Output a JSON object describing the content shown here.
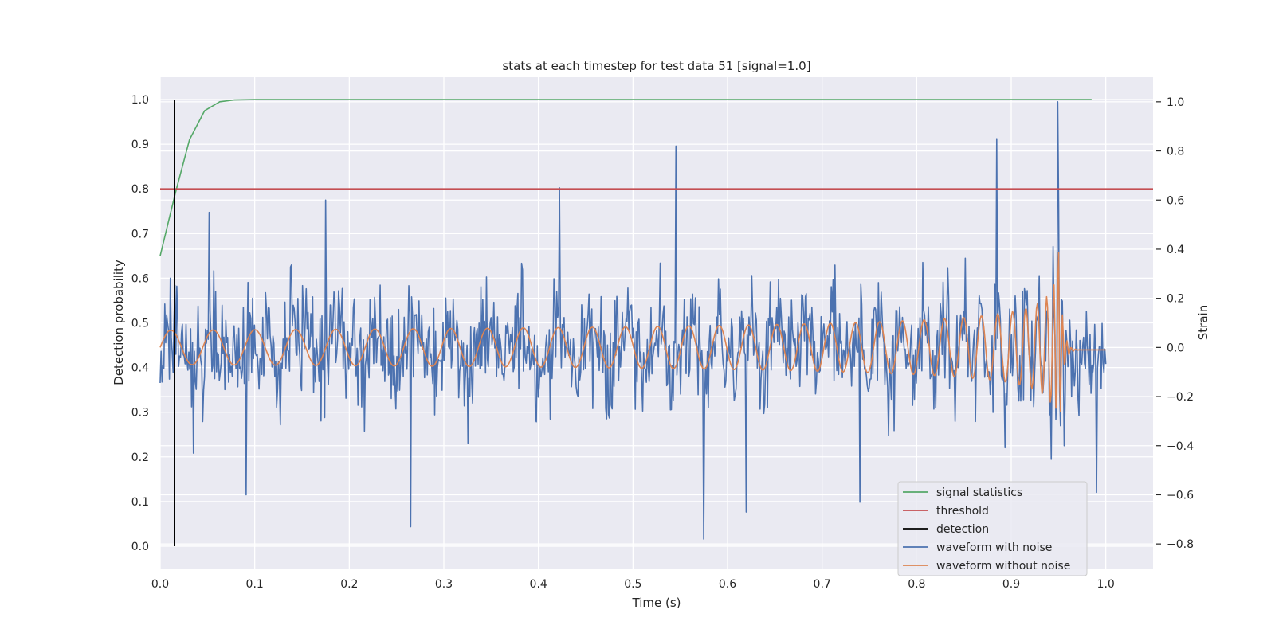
{
  "chart_data": {
    "type": "line",
    "title": "stats at each timestep for test data 51 [signal=1.0]",
    "xlabel": "Time (s)",
    "ylabel": "Detection probability",
    "y2label": "Strain",
    "xlim": [
      0.0,
      1.05
    ],
    "ylim": [
      -0.05,
      1.05
    ],
    "y2lim": [
      -0.9,
      1.1
    ],
    "xticks": [
      "0.0",
      "0.1",
      "0.2",
      "0.3",
      "0.4",
      "0.5",
      "0.6",
      "0.7",
      "0.8",
      "0.9",
      "1.0"
    ],
    "yticks": [
      "0.0",
      "0.1",
      "0.2",
      "0.3",
      "0.4",
      "0.5",
      "0.6",
      "0.7",
      "0.8",
      "0.9",
      "1.0"
    ],
    "y2ticks": [
      "−0.8",
      "−0.6",
      "−0.4",
      "−0.2",
      "0.0",
      "0.2",
      "0.4",
      "0.6",
      "0.8",
      "1.0"
    ],
    "grid": true,
    "legend_position": "lower-right",
    "series": [
      {
        "name": "signal statistics",
        "axis": "left",
        "color": "#55a868",
        "x": [
          0.0,
          0.016,
          0.031,
          0.047,
          0.063,
          0.078,
          0.1,
          0.3,
          0.5,
          0.7,
          0.9,
          0.985
        ],
        "values": [
          0.65,
          0.79,
          0.91,
          0.975,
          0.995,
          0.999,
          1.0,
          1.0,
          1.0,
          1.0,
          1.0,
          1.0
        ]
      },
      {
        "name": "threshold",
        "axis": "left",
        "color": "#c44e52",
        "x": [
          0.0,
          1.05
        ],
        "values": [
          0.8,
          0.8
        ]
      },
      {
        "name": "detection",
        "axis": "left",
        "color": "#000000",
        "x": [
          0.015,
          0.015
        ],
        "values": [
          0.0,
          1.0
        ]
      },
      {
        "name": "waveform with noise",
        "axis": "right",
        "color": "#4c72b0",
        "x_start": 0.0,
        "x_end": 1.0,
        "peaks": [
          {
            "x": 0.052,
            "v": 0.55
          },
          {
            "x": 0.091,
            "v": -0.6
          },
          {
            "x": 0.175,
            "v": 0.6
          },
          {
            "x": 0.265,
            "v": -0.73
          },
          {
            "x": 0.422,
            "v": 0.65
          },
          {
            "x": 0.545,
            "v": 0.82
          },
          {
            "x": 0.575,
            "v": -0.78
          },
          {
            "x": 0.62,
            "v": -0.67
          },
          {
            "x": 0.74,
            "v": -0.63
          },
          {
            "x": 0.885,
            "v": 0.85
          },
          {
            "x": 0.949,
            "v": 1.0
          },
          {
            "x": 0.956,
            "v": -0.4
          },
          {
            "x": 0.99,
            "v": -0.59
          }
        ]
      },
      {
        "name": "waveform without noise",
        "axis": "right",
        "color": "#dd8452",
        "x_start": 0.0,
        "x_end": 1.0,
        "merger_time": 0.95,
        "base_amplitude": 0.07,
        "peak_amplitude": 0.47
      }
    ]
  }
}
